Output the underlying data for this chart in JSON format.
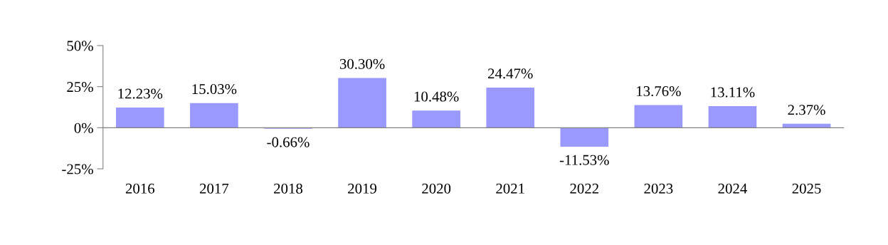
{
  "chart_data": {
    "type": "bar",
    "categories": [
      "2016",
      "2017",
      "2018",
      "2019",
      "2020",
      "2021",
      "2022",
      "2023",
      "2024",
      "2025"
    ],
    "values": [
      12.23,
      15.03,
      -0.66,
      30.3,
      10.48,
      24.47,
      -11.53,
      13.76,
      13.11,
      2.37
    ],
    "value_labels": [
      "12.23%",
      "15.03%",
      "-0.66%",
      "30.30%",
      "10.48%",
      "24.47%",
      "-11.53%",
      "13.76%",
      "13.11%",
      "2.37%"
    ],
    "color": "#9999ff",
    "ylim": [
      -25,
      50
    ],
    "yticks": [
      {
        "value": -25,
        "label": "-25%"
      },
      {
        "value": 0,
        "label": "0%"
      },
      {
        "value": 25,
        "label": "25%"
      },
      {
        "value": 50,
        "label": "50%"
      }
    ],
    "legend": false
  }
}
